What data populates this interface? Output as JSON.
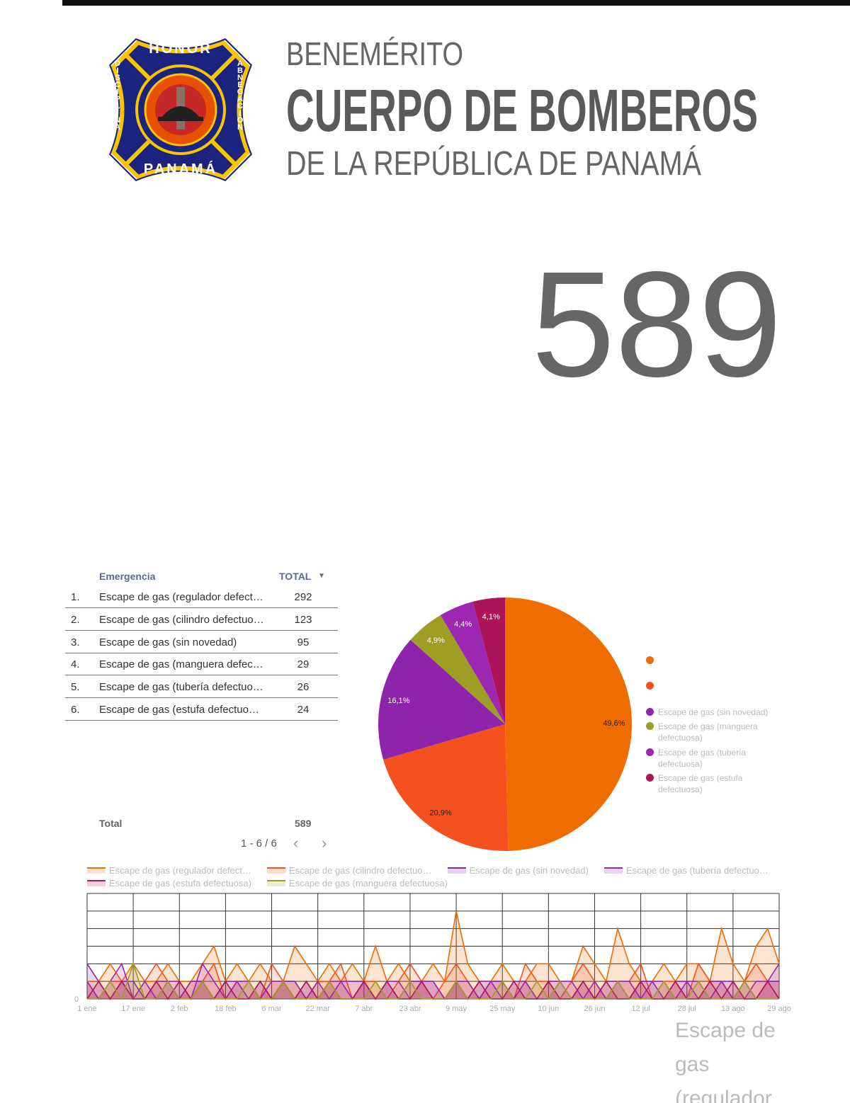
{
  "header": {
    "line1": "BENEMÉRITO",
    "line2": "CUERPO DE BOMBEROS",
    "line3": "DE LA REPÚBLICA DE PANAMÁ",
    "logo": {
      "top": "HONOR",
      "left": "DISCIPLINA",
      "right": "ABNEGACIÓN",
      "bottom": "PANAMÁ"
    }
  },
  "scorecard": {
    "value": 589
  },
  "table": {
    "columns": [
      "Emergencia",
      "TOTAL"
    ],
    "rows": [
      [
        "1.",
        "Escape de gas (regulador defect…",
        292
      ],
      [
        "2.",
        "Escape de gas (cilindro defectuo…",
        123
      ],
      [
        "3.",
        "Escape de gas (sin novedad)",
        95
      ],
      [
        "4.",
        "Escape de gas (manguera defec…",
        29
      ],
      [
        "5.",
        "Escape de gas (tubería defectuo…",
        26
      ],
      [
        "6.",
        "Escape de gas (estufa defectuo…",
        24
      ]
    ],
    "footer": [
      "Total",
      589
    ],
    "pagination": "1 - 6 / 6"
  },
  "chart_data": [
    {
      "type": "pie",
      "categories": [
        null,
        null,
        "Escape de gas (sin novedad)",
        "Escape de gas (manguera defectuosa)",
        "Escape de gas (tubería defectuosa)",
        "Escape de gas (estufa defectuosa)"
      ],
      "values": [
        49.6,
        20.9,
        16.1,
        4.9,
        4.4,
        4.1
      ],
      "value_labels": [
        "49,6%",
        "20,9%",
        "16,1%",
        "4,9%",
        "4,4%",
        "4,1%"
      ],
      "colors": [
        "#ef6c00",
        "#f4511e",
        "#8e24aa",
        "#9e9d24",
        "#9c27b0",
        "#ad1457"
      ],
      "legend": "right"
    },
    {
      "type": "line",
      "x": [
        "1 ene",
        null,
        null,
        null,
        "17 ene",
        null,
        null,
        null,
        "2 feb",
        null,
        null,
        null,
        "18 feb",
        null,
        null,
        null,
        "6 mar",
        null,
        null,
        null,
        "22 mar",
        null,
        null,
        null,
        "7 abr",
        null,
        null,
        null,
        "23 abr",
        null,
        null,
        null,
        "9 may",
        null,
        null,
        null,
        "25 may",
        null,
        null,
        null,
        "10 jun",
        null,
        null,
        null,
        "26 jun",
        null,
        null,
        null,
        "12 jul",
        null,
        null,
        null,
        "28 jul",
        null,
        null,
        null,
        "13 ago",
        null,
        null,
        null,
        "29 ago"
      ],
      "ylim": [
        0,
        6
      ],
      "yticks": [
        0
      ],
      "ygrid": [
        1,
        2,
        3,
        4,
        5,
        6
      ],
      "legend": "top",
      "series": [
        {
          "name": "Escape de gas (regulador defect…",
          "color": "#ef6c00",
          "values": [
            1,
            1,
            2,
            1,
            2,
            1,
            1,
            2,
            1,
            1,
            2,
            3,
            1,
            2,
            1,
            2,
            1,
            1,
            3,
            2,
            1,
            2,
            1,
            2,
            1,
            3,
            1,
            2,
            1,
            1,
            2,
            1,
            5,
            2,
            1,
            1,
            2,
            1,
            1,
            2,
            2,
            1,
            1,
            3,
            2,
            1,
            4,
            2,
            1,
            1,
            2,
            1,
            2,
            2,
            1,
            4,
            2,
            1,
            3,
            4,
            2
          ]
        },
        {
          "name": "Escape de gas (cilindro defectuo…",
          "color": "#f4511e",
          "values": [
            1,
            0,
            1,
            1,
            0,
            1,
            2,
            1,
            0,
            1,
            1,
            2,
            0,
            1,
            1,
            0,
            2,
            1,
            1,
            0,
            1,
            1,
            2,
            0,
            1,
            1,
            0,
            1,
            2,
            1,
            0,
            1,
            2,
            1,
            0,
            1,
            1,
            0,
            2,
            1,
            1,
            0,
            1,
            2,
            1,
            0,
            1,
            1,
            2,
            0,
            1,
            1,
            0,
            2,
            1,
            1,
            0,
            1,
            2,
            1,
            1
          ]
        },
        {
          "name": "Escape de gas (sin novedad)",
          "color": "#8e24aa",
          "values": [
            2,
            1,
            0,
            1,
            1,
            0,
            1,
            1,
            0,
            1,
            1,
            0,
            1,
            1,
            0,
            1,
            0,
            1,
            1,
            0,
            1,
            0,
            1,
            1,
            1,
            0,
            1,
            0,
            1,
            1,
            1,
            0,
            1,
            1,
            0,
            1,
            1,
            0,
            1,
            0,
            1,
            1,
            0,
            1,
            0,
            1,
            1,
            0,
            1,
            1,
            0,
            1,
            1,
            0,
            1,
            1,
            0,
            1,
            0,
            1,
            1
          ]
        },
        {
          "name": "Escape de gas (tubería defectuo…",
          "color": "#9c27b0",
          "values": [
            1,
            0,
            1,
            2,
            0,
            1,
            0,
            1,
            1,
            0,
            2,
            1,
            0,
            1,
            1,
            0,
            1,
            1,
            0,
            1,
            0,
            1,
            1,
            0,
            1,
            0,
            1,
            1,
            0,
            1,
            1,
            0,
            1,
            0,
            1,
            1,
            0,
            1,
            1,
            0,
            0,
            1,
            1,
            0,
            1,
            0,
            1,
            1,
            0,
            1,
            1,
            0,
            1,
            1,
            0,
            1,
            1,
            0,
            1,
            1,
            2
          ]
        },
        {
          "name": "Escape de gas (estufa defectuosa)",
          "color": "#ad1457",
          "values": [
            0,
            1,
            0,
            1,
            0,
            0,
            1,
            0,
            1,
            0,
            1,
            0,
            1,
            0,
            0,
            1,
            0,
            1,
            0,
            1,
            0,
            1,
            0,
            0,
            1,
            0,
            1,
            0,
            0,
            1,
            0,
            0,
            1,
            0,
            1,
            0,
            0,
            1,
            0,
            0,
            1,
            0,
            0,
            1,
            0,
            1,
            0,
            0,
            1,
            0,
            0,
            1,
            0,
            0,
            1,
            0,
            1,
            0,
            0,
            1,
            0
          ]
        },
        {
          "name": "Escape de gas (manguera defectuosa)",
          "color": "#9e9d24",
          "values": [
            0,
            0,
            1,
            0,
            2,
            0,
            0,
            1,
            0,
            0,
            1,
            0,
            0,
            0,
            1,
            0,
            0,
            1,
            0,
            0,
            0,
            1,
            0,
            0,
            0,
            1,
            0,
            0,
            1,
            0,
            0,
            0,
            1,
            0,
            0,
            0,
            1,
            0,
            0,
            1,
            0,
            1,
            0,
            0,
            0,
            0,
            1,
            0,
            0,
            0,
            1,
            0,
            0,
            1,
            0,
            0,
            0,
            1,
            0,
            0,
            0
          ]
        }
      ]
    }
  ],
  "bottom_label": "Escape de gas (regulador"
}
